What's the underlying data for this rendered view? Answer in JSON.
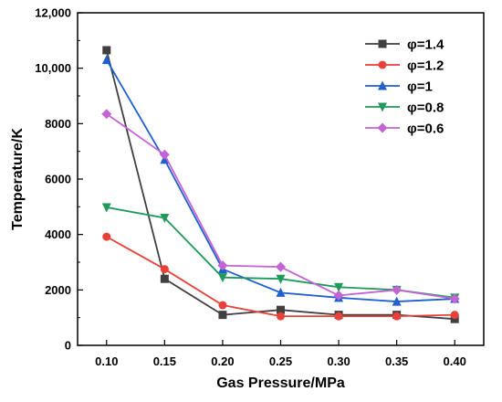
{
  "chart_data": {
    "type": "line",
    "title": "",
    "xlabel": "Gas Pressure/MPa",
    "ylabel": "Temperature/K",
    "x": [
      0.1,
      0.15,
      0.2,
      0.25,
      0.3,
      0.35,
      0.4
    ],
    "x_tick_labels": [
      "0.10",
      "0.15",
      "0.20",
      "0.25",
      "0.30",
      "0.35",
      "0.40"
    ],
    "xlim": [
      0.075,
      0.425
    ],
    "ylim": [
      0,
      12000
    ],
    "y_ticks": [
      0,
      2000,
      4000,
      6000,
      8000,
      10000,
      12000
    ],
    "y_tick_labels": [
      "0",
      "2000",
      "4000",
      "6000",
      "8000",
      "10,000",
      "12,000"
    ],
    "grid": false,
    "legend_position": "top-right",
    "series": [
      {
        "name": "φ=1.4",
        "color": "#404040",
        "marker": "square",
        "values": [
          10650,
          2400,
          1100,
          1280,
          1100,
          1100,
          950
        ]
      },
      {
        "name": "φ=1.2",
        "color": "#e8413a",
        "marker": "circle",
        "values": [
          3920,
          2750,
          1450,
          1050,
          1050,
          1050,
          1100
        ]
      },
      {
        "name": "φ=1",
        "color": "#1f5fcf",
        "marker": "triangle-up",
        "values": [
          10300,
          6700,
          2750,
          1900,
          1720,
          1580,
          1680
        ]
      },
      {
        "name": "φ=0.8",
        "color": "#1f9a5a",
        "marker": "triangle-down",
        "values": [
          4980,
          4600,
          2450,
          2400,
          2100,
          2000,
          1720
        ]
      },
      {
        "name": "φ=0.6",
        "color": "#c463d6",
        "marker": "diamond",
        "values": [
          8350,
          6880,
          2880,
          2830,
          1800,
          2000,
          1680
        ]
      }
    ]
  }
}
